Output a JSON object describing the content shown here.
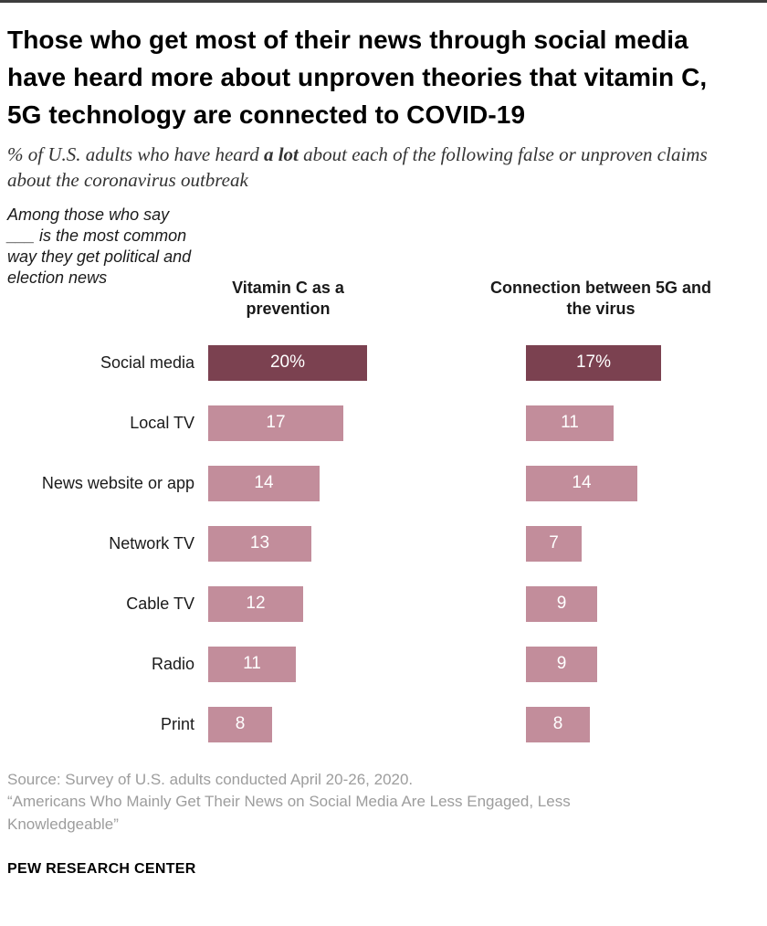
{
  "page": {
    "title": "Those who get most of their news through social media have heard more about unproven theories that vitamin C, 5G technology are connected to COVID-19",
    "subtitle_prefix": "% of U.S. adults who have heard ",
    "subtitle_bold": "a lot",
    "subtitle_suffix": " about each of the following false or unproven claims about the coronavirus outbreak",
    "note": "Among those who say ___ is the most common way they get political and election news",
    "source_line1": "Source: Survey of U.S. adults conducted April 20-26, 2020.",
    "source_line2": "“Americans Who Mainly Get Their News on Social Media Are Less Engaged, Less Knowledgeable”",
    "footer": "PEW RESEARCH CENTER"
  },
  "chart_data": {
    "type": "bar",
    "orientation": "horizontal",
    "title": "Those who get most of their news through social media have heard more about unproven theories that vitamin C, 5G technology are connected to COVID-19",
    "categories": [
      "Social media",
      "Local TV",
      "News website or app",
      "Network TV",
      "Cable TV",
      "Radio",
      "Print"
    ],
    "series": [
      {
        "name": "Vitamin C as a prevention",
        "values": [
          20,
          17,
          14,
          13,
          12,
          11,
          8
        ],
        "value_labels": [
          "20%",
          "17",
          "14",
          "13",
          "12",
          "11",
          "8"
        ]
      },
      {
        "name": "Connection between 5G and the virus",
        "values": [
          17,
          11,
          14,
          7,
          9,
          9,
          8
        ],
        "value_labels": [
          "17%",
          "11",
          "14",
          "7",
          "9",
          "9",
          "8"
        ]
      }
    ],
    "highlight_category": "Social media",
    "colors": {
      "highlight": "#7b4150",
      "normal": "#c28d9b",
      "value_label": "#ffffff"
    },
    "xlim": [
      0,
      23
    ],
    "grid": false,
    "legend": "none"
  }
}
